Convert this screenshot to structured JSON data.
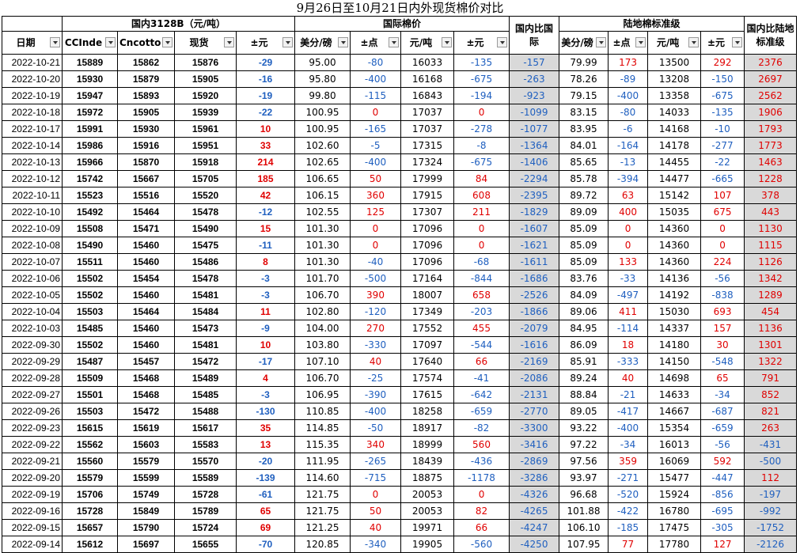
{
  "title": "9月26日至10月21日内外现货棉价对比",
  "groups": {
    "domestic": "国内3128B（元/吨）",
    "intl": "国际棉价",
    "ratio_intl": "国内比国际",
    "luodi": "陆地棉标准级",
    "ratio_luodi": "国内比陆地标准级"
  },
  "headers": {
    "date": "日期",
    "ccindex": "CCInde",
    "cncotton": "Cncotto",
    "spot": "现货",
    "change": "±元",
    "usd_lb": "美分/磅",
    "points": "±点",
    "yuan_ton": "元/吨",
    "yuan_change": "±元",
    "l_usd_lb": "美分/磅",
    "l_points": "±点",
    "l_yuan_ton": "元/吨",
    "l_yuan_change": "±元"
  },
  "rows": [
    [
      "2022-10-21",
      "15889",
      "15862",
      "15876",
      "-29",
      "95.00",
      "-80",
      "16033",
      "-135",
      "-157",
      "79.99",
      "173",
      "13500",
      "292",
      "2376"
    ],
    [
      "2022-10-20",
      "15930",
      "15879",
      "15905",
      "-16",
      "95.80",
      "-400",
      "16168",
      "-675",
      "-263",
      "78.26",
      "-89",
      "13208",
      "-150",
      "2697"
    ],
    [
      "2022-10-19",
      "15947",
      "15893",
      "15920",
      "-19",
      "99.80",
      "-115",
      "16843",
      "-194",
      "-923",
      "79.15",
      "-400",
      "13358",
      "-675",
      "2562"
    ],
    [
      "2022-10-18",
      "15972",
      "15905",
      "15939",
      "-22",
      "100.95",
      "0",
      "17037",
      "0",
      "-1099",
      "83.15",
      "-80",
      "14033",
      "-135",
      "1906"
    ],
    [
      "2022-10-17",
      "15991",
      "15930",
      "15961",
      "10",
      "100.95",
      "-165",
      "17037",
      "-278",
      "-1077",
      "83.95",
      "-6",
      "14168",
      "-10",
      "1793"
    ],
    [
      "2022-10-14",
      "15986",
      "15916",
      "15951",
      "33",
      "102.60",
      "-5",
      "17315",
      "-8",
      "-1364",
      "84.01",
      "-164",
      "14178",
      "-277",
      "1773"
    ],
    [
      "2022-10-13",
      "15966",
      "15870",
      "15918",
      "214",
      "102.65",
      "-400",
      "17324",
      "-675",
      "-1406",
      "85.65",
      "-13",
      "14455",
      "-22",
      "1463"
    ],
    [
      "2022-10-12",
      "15742",
      "15667",
      "15705",
      "185",
      "106.65",
      "50",
      "17999",
      "84",
      "-2294",
      "85.78",
      "-394",
      "14477",
      "-665",
      "1228"
    ],
    [
      "2022-10-11",
      "15523",
      "15516",
      "15520",
      "42",
      "106.15",
      "360",
      "17915",
      "608",
      "-2395",
      "89.72",
      "63",
      "15142",
      "107",
      "378"
    ],
    [
      "2022-10-10",
      "15492",
      "15464",
      "15478",
      "-12",
      "102.55",
      "125",
      "17307",
      "211",
      "-1829",
      "89.09",
      "400",
      "15035",
      "675",
      "443"
    ],
    [
      "2022-10-09",
      "15508",
      "15471",
      "15490",
      "15",
      "101.30",
      "0",
      "17096",
      "0",
      "-1607",
      "85.09",
      "0",
      "14360",
      "0",
      "1130"
    ],
    [
      "2022-10-08",
      "15490",
      "15460",
      "15475",
      "-11",
      "101.30",
      "0",
      "17096",
      "0",
      "-1621",
      "85.09",
      "0",
      "14360",
      "0",
      "1115"
    ],
    [
      "2022-10-07",
      "15511",
      "15460",
      "15486",
      "8",
      "101.30",
      "-40",
      "17096",
      "-68",
      "-1611",
      "85.09",
      "133",
      "14360",
      "224",
      "1126"
    ],
    [
      "2022-10-06",
      "15502",
      "15454",
      "15478",
      "-3",
      "101.70",
      "-500",
      "17164",
      "-844",
      "-1686",
      "83.76",
      "-33",
      "14136",
      "-56",
      "1342"
    ],
    [
      "2022-10-05",
      "15502",
      "15460",
      "15481",
      "-3",
      "106.70",
      "390",
      "18007",
      "658",
      "-2526",
      "84.09",
      "-497",
      "14192",
      "-838",
      "1289"
    ],
    [
      "2022-10-04",
      "15503",
      "15464",
      "15484",
      "11",
      "102.80",
      "-120",
      "17349",
      "-203",
      "-1866",
      "89.06",
      "411",
      "15030",
      "693",
      "454"
    ],
    [
      "2022-10-03",
      "15485",
      "15460",
      "15473",
      "-9",
      "104.00",
      "270",
      "17552",
      "455",
      "-2079",
      "84.95",
      "-114",
      "14337",
      "157",
      "1136"
    ],
    [
      "2022-09-30",
      "15502",
      "15460",
      "15481",
      "10",
      "103.80",
      "-330",
      "17097",
      "-544",
      "-1616",
      "86.09",
      "18",
      "14180",
      "30",
      "1301"
    ],
    [
      "2022-09-29",
      "15487",
      "15457",
      "15472",
      "-17",
      "107.10",
      "40",
      "17640",
      "66",
      "-2169",
      "85.91",
      "-333",
      "14150",
      "-548",
      "1322"
    ],
    [
      "2022-09-28",
      "15509",
      "15468",
      "15489",
      "4",
      "106.70",
      "-25",
      "17574",
      "-41",
      "-2086",
      "89.24",
      "40",
      "14698",
      "65",
      "791"
    ],
    [
      "2022-09-27",
      "15501",
      "15468",
      "15485",
      "-3",
      "106.95",
      "-390",
      "17615",
      "-642",
      "-2131",
      "88.84",
      "-21",
      "14633",
      "-34",
      "852"
    ],
    [
      "2022-09-26",
      "15503",
      "15472",
      "15488",
      "-130",
      "110.85",
      "-400",
      "18258",
      "-659",
      "-2770",
      "89.05",
      "-417",
      "14667",
      "-687",
      "821"
    ],
    [
      "2022-09-23",
      "15615",
      "15619",
      "15617",
      "35",
      "114.85",
      "-50",
      "18917",
      "-82",
      "-3300",
      "93.22",
      "-400",
      "15354",
      "-659",
      "263"
    ],
    [
      "2022-09-22",
      "15562",
      "15603",
      "15583",
      "13",
      "115.35",
      "340",
      "18999",
      "560",
      "-3416",
      "97.22",
      "-34",
      "16013",
      "-56",
      "-431"
    ],
    [
      "2022-09-21",
      "15560",
      "15579",
      "15570",
      "-20",
      "111.95",
      "-265",
      "18439",
      "-436",
      "-2869",
      "97.56",
      "359",
      "16069",
      "592",
      "-500"
    ],
    [
      "2022-09-20",
      "15579",
      "15599",
      "15589",
      "-139",
      "114.60",
      "-715",
      "18875",
      "-1178",
      "-3286",
      "93.97",
      "-271",
      "15477",
      "-447",
      "112"
    ],
    [
      "2022-09-19",
      "15706",
      "15749",
      "15728",
      "-61",
      "121.75",
      "0",
      "20053",
      "0",
      "-4326",
      "96.68",
      "-520",
      "15924",
      "-856",
      "-197"
    ],
    [
      "2022-09-16",
      "15728",
      "15849",
      "15789",
      "65",
      "121.75",
      "50",
      "20053",
      "82",
      "-4265",
      "101.88",
      "-422",
      "16780",
      "-695",
      "-992"
    ],
    [
      "2022-09-15",
      "15657",
      "15790",
      "15724",
      "69",
      "121.25",
      "40",
      "19971",
      "66",
      "-4247",
      "106.10",
      "-185",
      "17475",
      "-305",
      "-1752"
    ],
    [
      "2022-09-14",
      "15612",
      "15697",
      "15655",
      "-70",
      "120.85",
      "-340",
      "19905",
      "-560",
      "-4250",
      "107.95",
      "77",
      "17780",
      "127",
      "-2126"
    ]
  ],
  "colors": {
    "positive": "#e00000",
    "negative": "#1f5fbf",
    "ratio_bg": "#d9d9d9"
  }
}
